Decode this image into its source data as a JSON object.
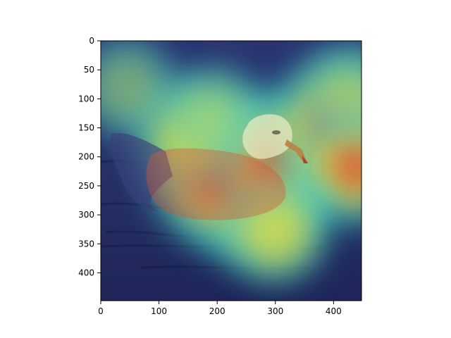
{
  "chart_data": {
    "type": "heatmap",
    "title": "",
    "xlabel": "",
    "ylabel": "",
    "xlim": [
      0,
      448
    ],
    "ylim": [
      448,
      0
    ],
    "xticks": [
      0,
      100,
      200,
      300,
      400
    ],
    "yticks": [
      0,
      50,
      100,
      150,
      200,
      250,
      300,
      350,
      400
    ],
    "colormap": "jet",
    "background_scene": "seagull-swimming-on-water",
    "colors": {
      "low": "#1a1f8c",
      "mid": "#3ec9c9",
      "high": "#f0e23a",
      "peak": "#e0302a",
      "water": "#2e3560",
      "bird_head": "#f2efc8",
      "beak": "#c07a3a"
    },
    "hotspots": [
      {
        "x": 265,
        "y": 255,
        "intensity": 1.0
      },
      {
        "x": 200,
        "y": 230,
        "intensity": 0.85
      },
      {
        "x": 300,
        "y": 200,
        "intensity": 0.75
      },
      {
        "x": 410,
        "y": 150,
        "intensity": 0.9
      },
      {
        "x": 440,
        "y": 215,
        "intensity": 0.65
      },
      {
        "x": 150,
        "y": 160,
        "intensity": 0.55
      },
      {
        "x": 300,
        "y": 330,
        "intensity": 0.45
      },
      {
        "x": 200,
        "y": 120,
        "intensity": 0.3
      },
      {
        "x": 45,
        "y": 80,
        "intensity": 0.4
      },
      {
        "x": 430,
        "y": 90,
        "intensity": 0.35
      }
    ]
  }
}
